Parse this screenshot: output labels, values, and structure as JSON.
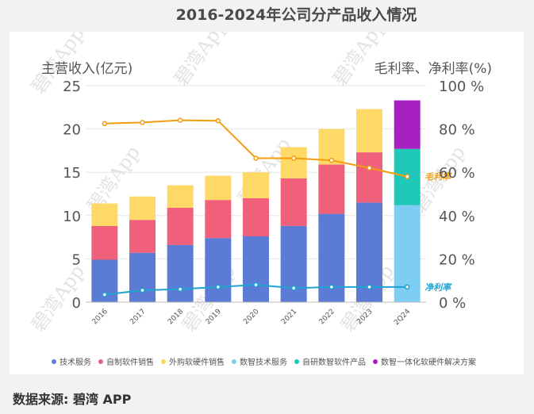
{
  "title": "2016-2024年公司分产品收入情况",
  "source": "数据来源: 碧湾 APP",
  "watermark": "碧湾App",
  "chart_data": {
    "type": "bar",
    "stacked": true,
    "categories": [
      "2016",
      "2017",
      "2018",
      "2019",
      "2020",
      "2021",
      "2022",
      "2023",
      "2Q24"
    ],
    "ylabel": "主营收入(亿元)",
    "y2label": "毛利率、净利率(%)",
    "ylim": [
      0,
      25
    ],
    "y2lim": [
      0,
      100
    ],
    "yticks": [
      0,
      5,
      10,
      15,
      20,
      25
    ],
    "y2ticks": [
      "0 %",
      "20 %",
      "40 %",
      "60 %",
      "80 %",
      "100 %"
    ],
    "grid": true,
    "legend_position": "bottom",
    "series": [
      {
        "name": "技术服务",
        "color": "#5b7bd5",
        "values": [
          4.9,
          5.7,
          6.6,
          7.4,
          7.6,
          8.8,
          10.2,
          11.5,
          0
        ]
      },
      {
        "name": "自制软件销售",
        "color": "#f0607a",
        "values": [
          3.9,
          3.8,
          4.3,
          4.4,
          4.4,
          5.5,
          5.7,
          5.8,
          0
        ]
      },
      {
        "name": "外购软硬件销售",
        "color": "#ffd966",
        "values": [
          2.6,
          2.7,
          2.6,
          2.8,
          3.0,
          3.6,
          4.1,
          5.0,
          0
        ]
      },
      {
        "name": "数智技术服务",
        "color": "#7ecdf3",
        "values": [
          0,
          0,
          0,
          0,
          0,
          0,
          0,
          0,
          11.2
        ]
      },
      {
        "name": "自研数智软件产品",
        "color": "#1fc8b8",
        "values": [
          0,
          0,
          0,
          0,
          0,
          0,
          0,
          0,
          6.5
        ]
      },
      {
        "name": "数智一体化软硬件解决方案",
        "color": "#a821c0",
        "values": [
          0,
          0,
          0,
          0,
          0,
          0,
          0,
          0,
          5.6
        ]
      }
    ],
    "lines": [
      {
        "name": "毛利率",
        "color": "#f39c12",
        "label": "毛利率",
        "values": [
          82.5,
          83,
          84,
          83.8,
          66.5,
          66.5,
          65.5,
          62,
          58
        ]
      },
      {
        "name": "净利率",
        "color": "#1fa3d1",
        "label": "净利率",
        "values": [
          3.5,
          5.5,
          6,
          7,
          8,
          6.5,
          7,
          7,
          7
        ]
      }
    ]
  }
}
